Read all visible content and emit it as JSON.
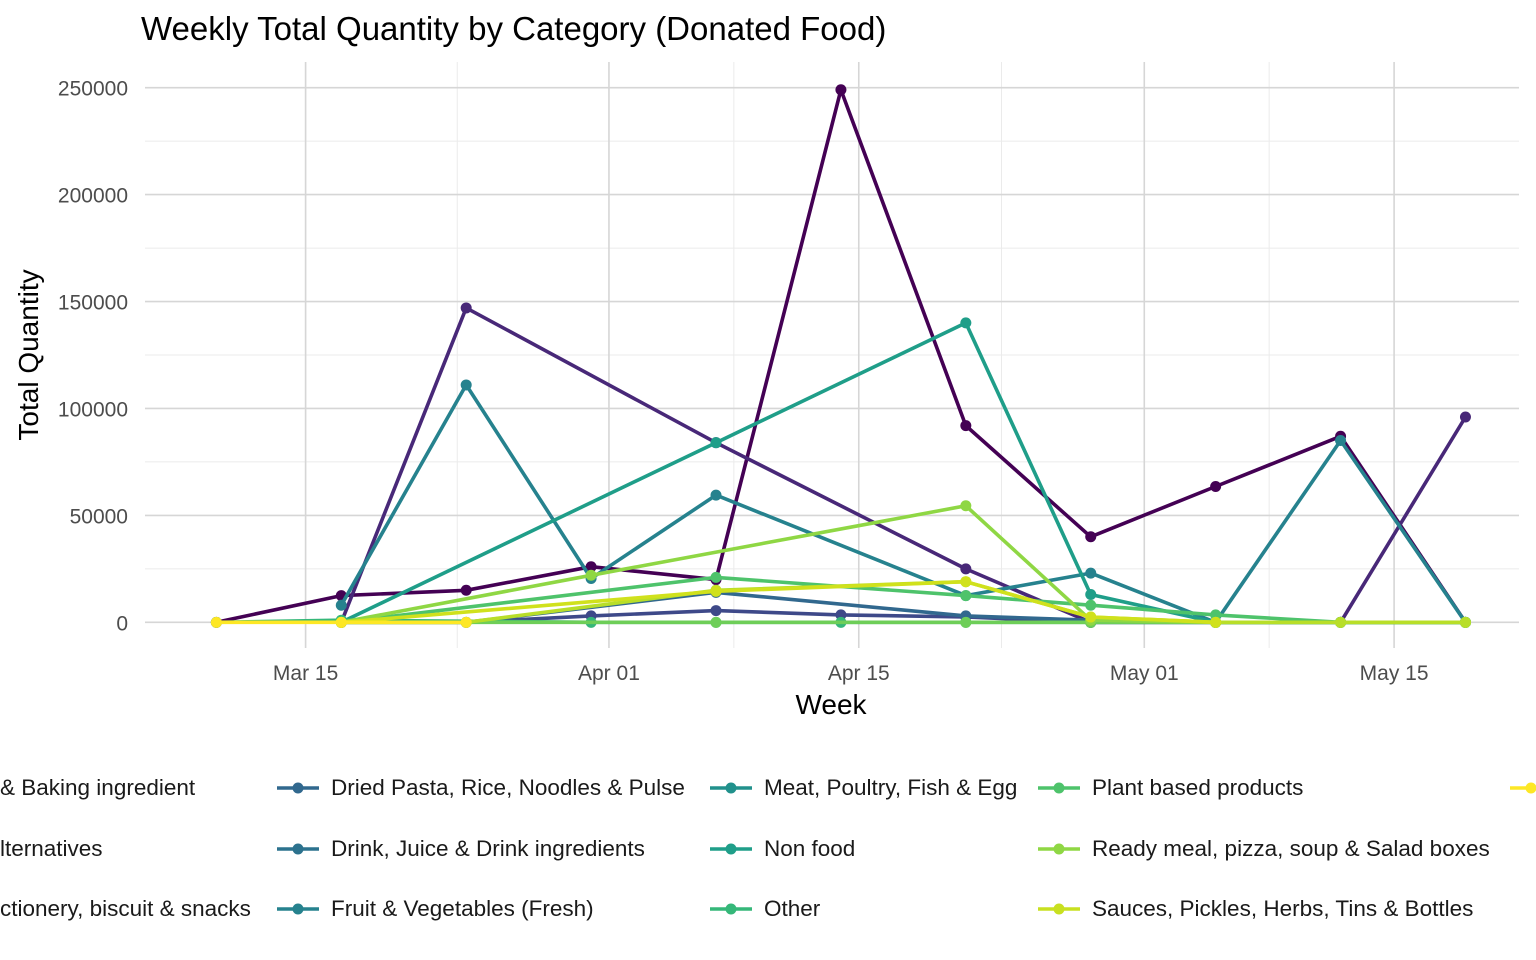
{
  "chart_data": {
    "type": "line",
    "title": "Weekly Total Quantity by Category (Donated Food)",
    "xlabel": "Week",
    "ylabel": "Total Quantity",
    "x_ticks": [
      "Mar 15",
      "Apr 01",
      "Apr 15",
      "May 01",
      "May 15"
    ],
    "x_tick_dates": [
      "2024-03-15",
      "2024-04-01",
      "2024-04-15",
      "2024-05-01",
      "2024-05-15"
    ],
    "y_ticks": [
      0,
      50000,
      100000,
      150000,
      200000,
      250000
    ],
    "ylim": [
      -12000,
      262000
    ],
    "xlim": [
      "2024-03-06",
      "2024-05-22"
    ],
    "grid": true,
    "legend_position": "bottom",
    "series": [
      {
        "name": "& Baking ingredient",
        "color": "#440154",
        "points": [
          [
            "2024-03-10",
            0
          ],
          [
            "2024-03-17",
            12500
          ],
          [
            "2024-03-24",
            15000
          ],
          [
            "2024-03-31",
            26000
          ],
          [
            "2024-04-07",
            20000
          ],
          [
            "2024-04-14",
            249000
          ],
          [
            "2024-04-21",
            92000
          ],
          [
            "2024-04-28",
            40000
          ],
          [
            "2024-05-05",
            63500
          ],
          [
            "2024-05-12",
            87000
          ],
          [
            "2024-05-19",
            0
          ]
        ]
      },
      {
        "name": "lternatives",
        "color": "#482878",
        "points": [
          [
            "2024-03-17",
            0
          ],
          [
            "2024-03-24",
            147000
          ],
          [
            "2024-04-07",
            84000
          ],
          [
            "2024-04-21",
            25000
          ],
          [
            "2024-04-28",
            0
          ],
          [
            "2024-05-05",
            0
          ],
          [
            "2024-05-12",
            0
          ],
          [
            "2024-05-19",
            96000
          ]
        ]
      },
      {
        "name": "ctionery, biscuit & snacks",
        "color": "#3e4989",
        "points": [
          [
            "2024-03-17",
            0
          ],
          [
            "2024-03-24",
            0
          ],
          [
            "2024-03-31",
            3000
          ],
          [
            "2024-04-07",
            5500
          ],
          [
            "2024-04-14",
            3500
          ],
          [
            "2024-04-21",
            2500
          ],
          [
            "2024-04-28",
            0
          ],
          [
            "2024-05-05",
            0
          ],
          [
            "2024-05-12",
            0
          ],
          [
            "2024-05-19",
            0
          ]
        ]
      },
      {
        "name": "Dried Pasta, Rice, Noodles & Pulse",
        "color": "#31688e",
        "points": [
          [
            "2024-03-17",
            0
          ],
          [
            "2024-03-24",
            0
          ],
          [
            "2024-04-07",
            14000
          ],
          [
            "2024-04-21",
            3000
          ],
          [
            "2024-04-28",
            1000
          ],
          [
            "2024-05-05",
            0
          ],
          [
            "2024-05-12",
            0
          ],
          [
            "2024-05-19",
            0
          ]
        ]
      },
      {
        "name": "Drink, Juice & Drink ingredients",
        "color": "#26828e",
        "points": [
          [
            "2024-03-17",
            8000
          ],
          [
            "2024-03-24",
            111000
          ],
          [
            "2024-03-31",
            20500
          ],
          [
            "2024-04-07",
            59500
          ],
          [
            "2024-04-21",
            12500
          ],
          [
            "2024-04-28",
            23000
          ],
          [
            "2024-05-05",
            0
          ],
          [
            "2024-05-12",
            85000
          ],
          [
            "2024-05-19",
            0
          ]
        ]
      },
      {
        "name": "Fruit & Vegetables (Fresh)",
        "color": "#1f9e89",
        "points": [
          [
            "2024-03-17",
            0
          ],
          [
            "2024-04-07",
            84000
          ],
          [
            "2024-04-21",
            140000
          ],
          [
            "2024-04-28",
            13000
          ],
          [
            "2024-05-05",
            0
          ],
          [
            "2024-05-12",
            0
          ],
          [
            "2024-05-19",
            0
          ]
        ]
      },
      {
        "name": "Meat, Poultry, Fish & Egg",
        "color": "#35b779",
        "points": [
          [
            "2024-03-10",
            0
          ],
          [
            "2024-03-17",
            1000
          ],
          [
            "2024-03-31",
            0
          ],
          [
            "2024-04-07",
            0
          ],
          [
            "2024-04-14",
            0
          ],
          [
            "2024-04-21",
            0
          ],
          [
            "2024-04-28",
            0
          ],
          [
            "2024-05-05",
            0
          ],
          [
            "2024-05-12",
            0
          ],
          [
            "2024-05-19",
            0
          ]
        ]
      },
      {
        "name": "Non food",
        "color": "#4ec36b",
        "points": [
          [
            "2024-03-17",
            0
          ],
          [
            "2024-04-07",
            21000
          ],
          [
            "2024-04-21",
            12500
          ],
          [
            "2024-04-28",
            8000
          ],
          [
            "2024-05-05",
            3500
          ],
          [
            "2024-05-12",
            0
          ],
          [
            "2024-05-19",
            0
          ]
        ]
      },
      {
        "name": "Other",
        "color": "#6ece58",
        "points": [
          [
            "2024-03-17",
            0
          ],
          [
            "2024-04-07",
            0
          ],
          [
            "2024-04-21",
            0
          ],
          [
            "2024-04-28",
            0
          ],
          [
            "2024-05-05",
            0
          ],
          [
            "2024-05-12",
            0
          ],
          [
            "2024-05-19",
            0
          ]
        ]
      },
      {
        "name": "Plant based products",
        "color": "#8fd744",
        "points": [
          [
            "2024-03-17",
            0
          ],
          [
            "2024-03-31",
            22000
          ],
          [
            "2024-04-21",
            54500
          ],
          [
            "2024-04-28",
            1000
          ],
          [
            "2024-05-05",
            0
          ],
          [
            "2024-05-12",
            0
          ],
          [
            "2024-05-19",
            0
          ]
        ]
      },
      {
        "name": "Ready meal, pizza, soup & Salad boxes",
        "color": "#b8de29",
        "points": [
          [
            "2024-03-17",
            0
          ],
          [
            "2024-03-24",
            0
          ],
          [
            "2024-04-07",
            15000
          ],
          [
            "2024-04-21",
            19000
          ],
          [
            "2024-04-28",
            2500
          ],
          [
            "2024-05-05",
            0
          ],
          [
            "2024-05-12",
            0
          ],
          [
            "2024-05-19",
            0
          ]
        ]
      },
      {
        "name": "Sauces, Pickles, Herbs, Tins & Bottles",
        "color": "#d0e11c",
        "points": [
          [
            "2024-03-17",
            0
          ],
          [
            "2024-04-07",
            14500
          ],
          [
            "2024-04-21",
            19000
          ],
          [
            "2024-04-28",
            2500
          ],
          [
            "2024-05-05",
            0
          ]
        ]
      },
      {
        "name": "",
        "color": "#fde725",
        "points": [
          [
            "2024-03-10",
            0
          ],
          [
            "2024-03-17",
            0
          ],
          [
            "2024-03-24",
            0
          ]
        ]
      }
    ]
  },
  "legend_visible": {
    "col0": [
      {
        "label": "& Baking ingredient",
        "color": "#440154"
      },
      {
        "label": "lternatives",
        "color": "#482878"
      },
      {
        "label": "ctionery, biscuit & snacks",
        "color": "#3e4989"
      }
    ],
    "col1": [
      {
        "label": "Dried Pasta, Rice, Noodles & Pulse",
        "color": "#31688e"
      },
      {
        "label": "Drink, Juice & Drink ingredients",
        "color": "#2c728e"
      },
      {
        "label": "Fruit & Vegetables (Fresh)",
        "color": "#26828e"
      }
    ],
    "col2": [
      {
        "label": "Meat, Poultry, Fish & Egg",
        "color": "#21918c"
      },
      {
        "label": "Non food",
        "color": "#1f9e89"
      },
      {
        "label": "Other",
        "color": "#35b779"
      }
    ],
    "col3": [
      {
        "label": "Plant based products",
        "color": "#4ec36b"
      },
      {
        "label": "Ready meal, pizza, soup & Salad boxes",
        "color": "#8fd744"
      },
      {
        "label": "Sauces, Pickles, Herbs, Tins & Bottles",
        "color": "#c8e020"
      }
    ],
    "col4": [
      {
        "label": "",
        "color": "#fde725"
      }
    ]
  }
}
